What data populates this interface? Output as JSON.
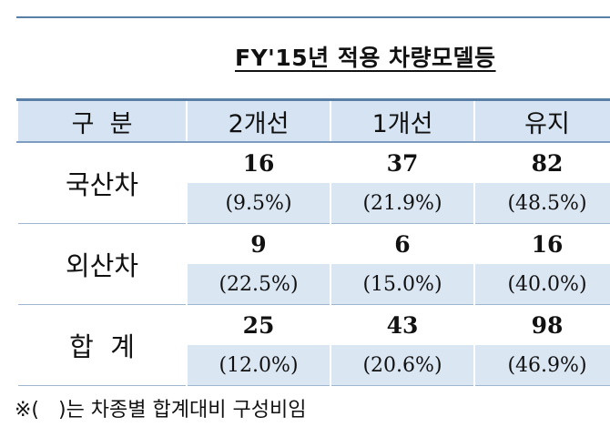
{
  "title": "FY'15년 적용 차량모델등",
  "table": {
    "headers": [
      "구  분",
      "2개선",
      "1개선",
      "유지"
    ],
    "rows": [
      {
        "label": "국산차",
        "counts": [
          "16",
          "37",
          "82"
        ],
        "percents": [
          "(9.5%)",
          "(21.9%)",
          "(48.5%)"
        ]
      },
      {
        "label": "외산차",
        "counts": [
          "9",
          "6",
          "16"
        ],
        "percents": [
          "(22.5%)",
          "(15.0%)",
          "(40.0%)"
        ]
      },
      {
        "label": "합  계",
        "counts": [
          "25",
          "43",
          "98"
        ],
        "percents": [
          "(12.0%)",
          "(20.6%)",
          "(46.9%)"
        ]
      }
    ]
  },
  "note": "※(   )는 차종별 합계대비 구성비임"
}
